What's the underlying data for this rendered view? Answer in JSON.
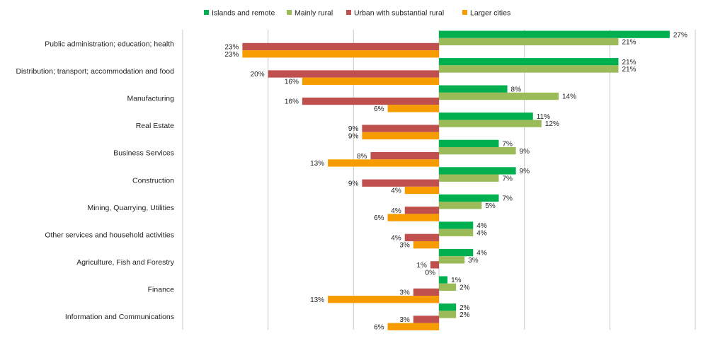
{
  "chart_data": {
    "type": "bar",
    "orientation": "horizontal",
    "title": "",
    "xlabel": "",
    "ylabel": "",
    "legend_position": "top",
    "grid": true,
    "categories": [
      "Public administration; education; health",
      "Distribution; transport; accommodation and food",
      "Manufacturing",
      "Real Estate",
      "Business Services",
      "Construction",
      "Mining, Quarrying, Utilities",
      "Other services and household activities",
      "Agriculture, Fish and Forestry",
      "Finance",
      "Information and Communications"
    ],
    "series": [
      {
        "name": "Islands and remote",
        "color": "#00b050",
        "direction": "right",
        "values": [
          27,
          21,
          8,
          11,
          7,
          9,
          7,
          4,
          4,
          1,
          2
        ],
        "labels": [
          "27%",
          "21%",
          "8%",
          "11%",
          "7%",
          "9%",
          "7%",
          "4%",
          "4%",
          "1%",
          "2%"
        ]
      },
      {
        "name": "Mainly rural",
        "color": "#9bbb59",
        "direction": "right",
        "values": [
          21,
          21,
          14,
          12,
          9,
          7,
          5,
          4,
          3,
          2,
          2
        ],
        "labels": [
          "21%",
          "21%",
          "14%",
          "12%",
          "9%",
          "7%",
          "5%",
          "4%",
          "3%",
          "2%",
          "2%"
        ]
      },
      {
        "name": "Urban with substantial rural",
        "color": "#c0504d",
        "direction": "left",
        "values": [
          23,
          20,
          16,
          9,
          8,
          9,
          4,
          4,
          1,
          3,
          3
        ],
        "labels": [
          "23%",
          "20%",
          "16%",
          "9%",
          "8%",
          "9%",
          "4%",
          "4%",
          "1%",
          "3%",
          "3%"
        ]
      },
      {
        "name": "Larger cities",
        "color": "#f79c00",
        "direction": "left",
        "values": [
          23,
          16,
          6,
          9,
          13,
          4,
          6,
          3,
          0,
          13,
          6
        ],
        "labels": [
          "23%",
          "16%",
          "6%",
          "9%",
          "13%",
          "4%",
          "6%",
          "3%",
          "0%",
          "13%",
          "6%"
        ]
      }
    ]
  }
}
